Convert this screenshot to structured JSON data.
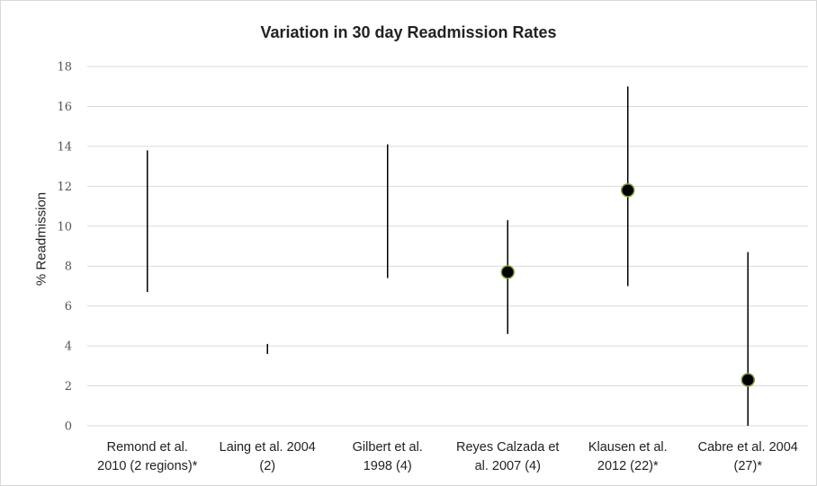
{
  "chart_data": {
    "type": "error_bar",
    "title": "Variation in 30 day Readmission Rates",
    "xlabel": "",
    "ylabel": "% Readmission",
    "ylim": [
      0,
      18
    ],
    "yticks": [
      0,
      2,
      4,
      6,
      8,
      10,
      12,
      14,
      16,
      18
    ],
    "grid": true,
    "categories": [
      [
        "Remond et al.",
        "2010 (2 regions)*"
      ],
      [
        "Laing et al. 2004",
        "(2)"
      ],
      [
        "Gilbert et al.",
        "1998 (4)"
      ],
      [
        "Reyes Calzada et",
        "al. 2007 (4)"
      ],
      [
        "Klausen et al.",
        "2012 (22)*"
      ],
      [
        "Cabre et al. 2004",
        "(27)*"
      ]
    ],
    "low": [
      6.7,
      3.6,
      7.4,
      4.6,
      7.0,
      0.0
    ],
    "high": [
      13.8,
      4.1,
      14.1,
      10.3,
      17.0,
      8.7
    ],
    "point": [
      null,
      null,
      null,
      7.7,
      11.8,
      2.3
    ],
    "colors": {
      "grid": "#d9d9d9",
      "range_line": "#000000",
      "marker_fill": "#000000",
      "marker_edge": "#7f9f3f"
    }
  }
}
